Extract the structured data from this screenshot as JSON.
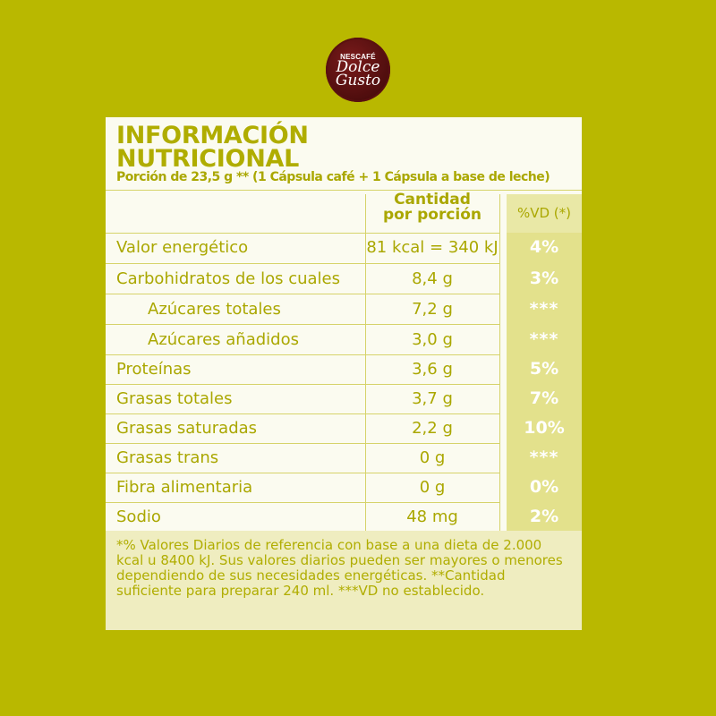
{
  "brand": {
    "line1": "NESCAFÉ",
    "line2": "Dolce",
    "line3": "Gusto"
  },
  "panel": {
    "title_line1": "INFORMACIÓN",
    "title_line2": "NUTRICIONAL",
    "portion": "Porción de 23,5 g ** (1 Cápsula café + 1 Cápsula a base de leche)",
    "col_qty_line1": "Cantidad",
    "col_qty_line2": "por porción",
    "col_vd": "%VD (*)"
  },
  "rows": [
    {
      "label": "Valor energético",
      "qty": "81 kcal = 340 kJ",
      "vd": "4%"
    },
    {
      "label": "Carbohidratos de los cuales",
      "qty": "8,4 g",
      "vd": "3%"
    },
    {
      "label": "Azúcares totales",
      "qty": "7,2 g",
      "vd": "***"
    },
    {
      "label": "Azúcares añadidos",
      "qty": "3,0 g",
      "vd": "***"
    },
    {
      "label": "Proteínas",
      "qty": "3,6 g",
      "vd": "5%"
    },
    {
      "label": "Grasas totales",
      "qty": "3,7 g",
      "vd": "7%"
    },
    {
      "label": "Grasas saturadas",
      "qty": "2,2 g",
      "vd": "10%"
    },
    {
      "label": "Grasas trans",
      "qty": "0 g",
      "vd": "***"
    },
    {
      "label": "Fibra alimentaria",
      "qty": "0 g",
      "vd": "0%"
    },
    {
      "label": "Sodio",
      "qty": "48 mg",
      "vd": "2%"
    }
  ],
  "footnote": "*% Valores Diarios de referencia con base a una dieta de 2.000 kcal u 8400 kJ. Sus valores diarios pueden ser mayores o menores dependiendo de sus necesidades energéticas. **Cantidad suficiente para preparar 240 ml. ***VD no establecido."
}
